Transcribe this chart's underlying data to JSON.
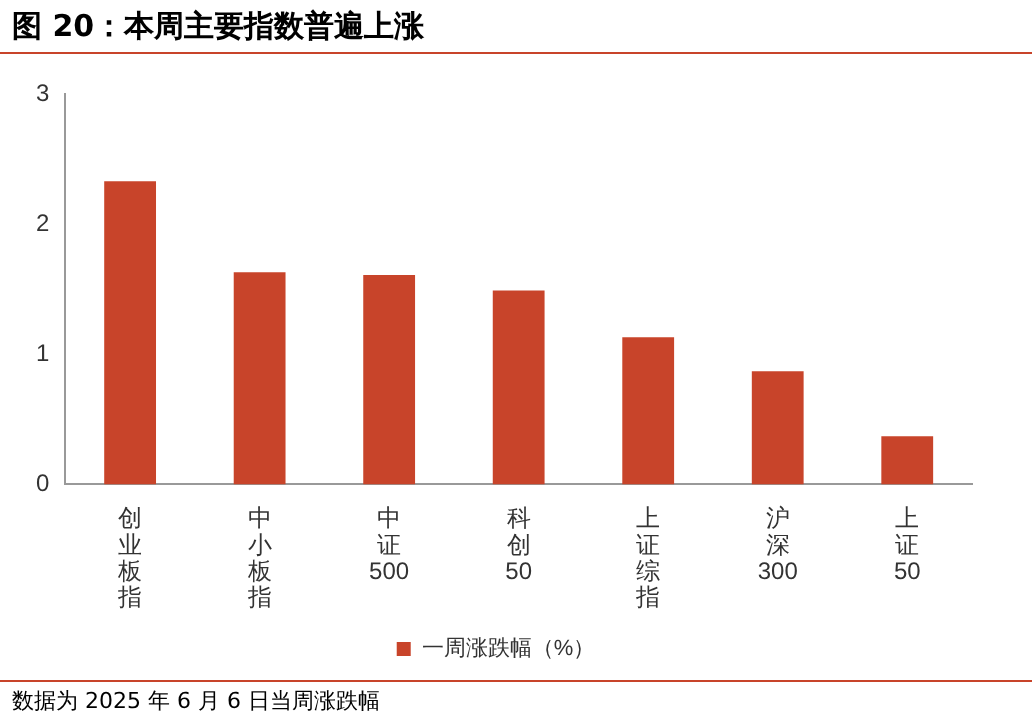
{
  "chart_data": {
    "type": "bar",
    "title": "图 20：本周主要指数普遍上涨",
    "categories": [
      "创业板指",
      "中小板指",
      "中证500",
      "科创50",
      "上证综指",
      "沪深300",
      "上证50"
    ],
    "series": [
      {
        "name": "一周涨跌幅（%）",
        "color": "#c8442a",
        "values": [
          2.33,
          1.63,
          1.61,
          1.49,
          1.13,
          0.87,
          0.37
        ]
      }
    ],
    "ylim": [
      0,
      3
    ],
    "yticks": [
      0,
      1,
      2,
      3
    ],
    "grid": false,
    "legend": "bottom",
    "annotations": [
      "数据为 2025 年 6 月 6 日当周涨跌幅"
    ]
  }
}
